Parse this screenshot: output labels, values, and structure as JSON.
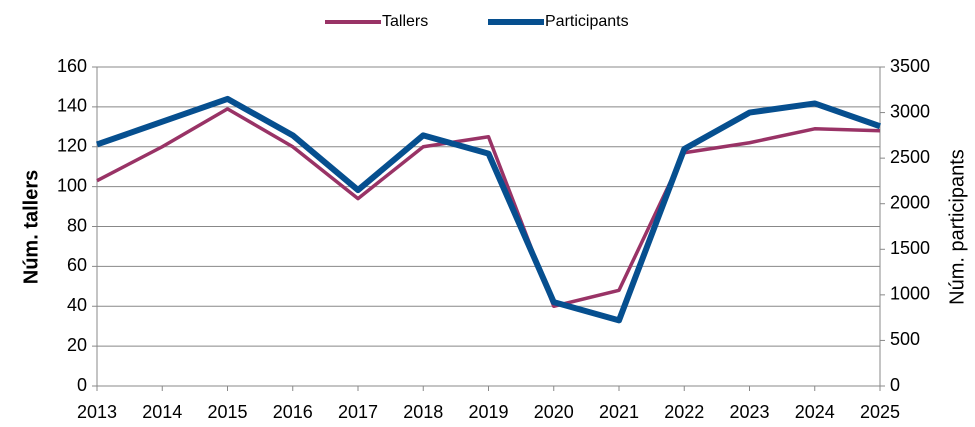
{
  "chart_data": {
    "type": "line",
    "categories": [
      "2013",
      "2014",
      "2015",
      "2016",
      "2017",
      "2018",
      "2019",
      "2020",
      "2021",
      "2022",
      "2023",
      "2024",
      "2025"
    ],
    "series": [
      {
        "name": "Tallers",
        "color": "#993366",
        "values": [
          103,
          120,
          139,
          120,
          94,
          120,
          125,
          40,
          48,
          117,
          122,
          129,
          128
        ]
      },
      {
        "name": "Participants",
        "color": "#064f8f",
        "axis": "y2",
        "values": [
          2650,
          2900,
          3150,
          2750,
          2150,
          2750,
          2550,
          920,
          720,
          2600,
          3000,
          3100,
          2850
        ]
      }
    ],
    "ylabel": "Núm. tallers",
    "y2label": "Núm. participants",
    "ylim": [
      0,
      160
    ],
    "yticks": [
      0,
      20,
      40,
      60,
      80,
      100,
      120,
      140,
      160
    ],
    "y2lim": [
      0,
      3500
    ],
    "y2ticks": [
      0,
      500,
      1000,
      1500,
      2000,
      2500,
      3000,
      3500
    ],
    "grid": true,
    "legend": "top"
  }
}
